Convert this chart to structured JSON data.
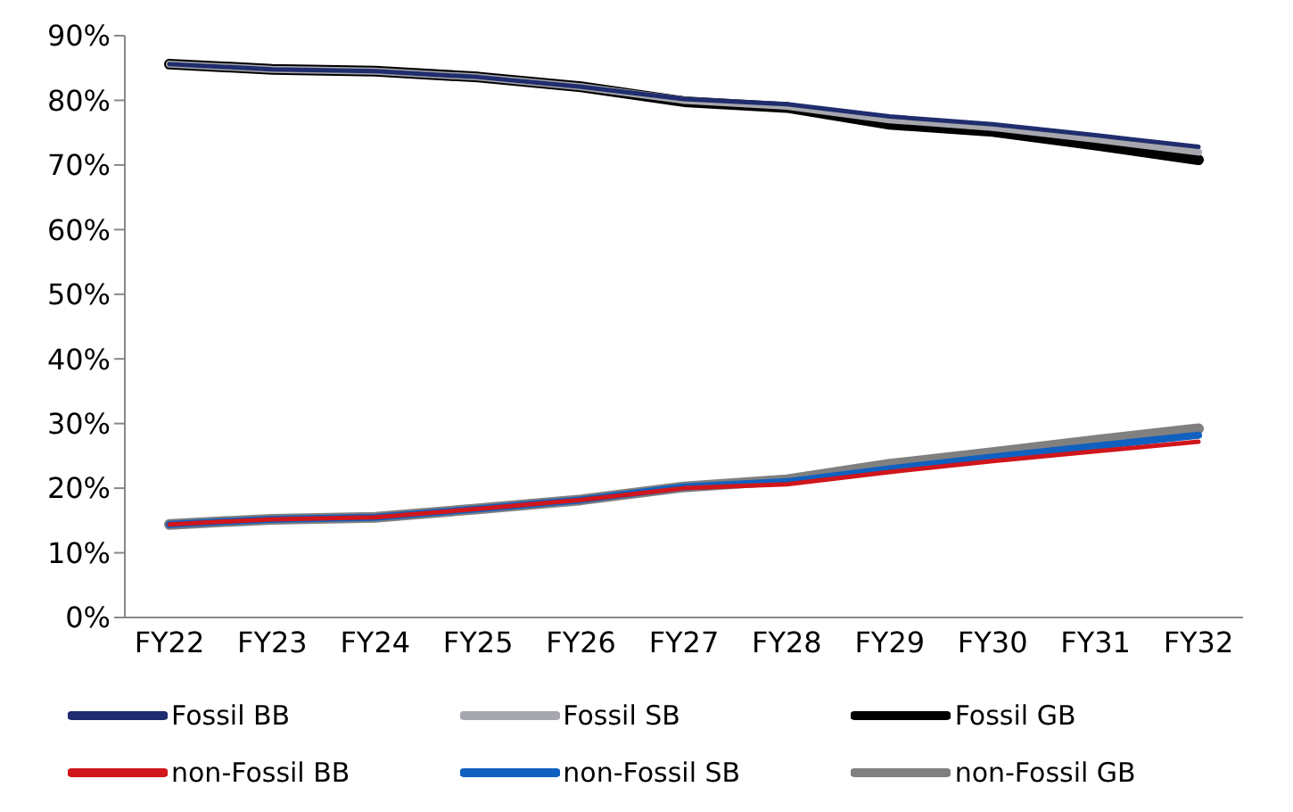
{
  "chart_data": {
    "type": "line",
    "categories": [
      "FY22",
      "FY23",
      "FY24",
      "FY25",
      "FY26",
      "FY27",
      "FY28",
      "FY29",
      "FY30",
      "FY31",
      "FY32"
    ],
    "series": [
      {
        "name": "Fossil BB",
        "color": "#1f2d6e",
        "values": [
          85.6,
          84.8,
          84.5,
          83.6,
          82.1,
          80.2,
          79.4,
          77.5,
          76.3,
          74.6,
          72.8
        ]
      },
      {
        "name": "Fossil SB",
        "color": "#a6a6ad",
        "values": [
          85.6,
          84.8,
          84.5,
          83.6,
          82.1,
          80.0,
          79.1,
          77.0,
          75.8,
          74.0,
          72.0
        ]
      },
      {
        "name": "Fossil GB",
        "color": "#000000",
        "values": [
          85.6,
          84.8,
          84.5,
          83.6,
          82.1,
          79.8,
          78.9,
          76.3,
          75.2,
          73.1,
          70.8
        ]
      },
      {
        "name": "non-Fossil BB",
        "color": "#d0161c",
        "values": [
          14.4,
          15.2,
          15.5,
          16.8,
          18.2,
          20.0,
          20.6,
          22.5,
          24.2,
          25.7,
          27.2
        ]
      },
      {
        "name": "non-Fossil SB",
        "color": "#1060c0",
        "values": [
          14.4,
          15.2,
          15.5,
          16.8,
          18.2,
          20.2,
          21.0,
          23.0,
          24.8,
          26.5,
          28.2
        ]
      },
      {
        "name": "non-Fossil GB",
        "color": "#808080",
        "values": [
          14.4,
          15.2,
          15.5,
          16.8,
          18.2,
          20.2,
          21.3,
          23.7,
          25.5,
          27.4,
          29.2
        ]
      }
    ],
    "ylim": [
      0,
      90
    ],
    "yticks": [
      {
        "value": 0,
        "label": "0%"
      },
      {
        "value": 10,
        "label": "10%"
      },
      {
        "value": 20,
        "label": "20%"
      },
      {
        "value": 30,
        "label": "30%"
      },
      {
        "value": 40,
        "label": "40%"
      },
      {
        "value": 50,
        "label": "50%"
      },
      {
        "value": 60,
        "label": "60%"
      },
      {
        "value": 70,
        "label": "70%"
      },
      {
        "value": 80,
        "label": "80%"
      },
      {
        "value": 90,
        "label": "90%"
      }
    ],
    "grid": false,
    "legend": "bottom",
    "marker": "none",
    "line_style": "solid"
  }
}
